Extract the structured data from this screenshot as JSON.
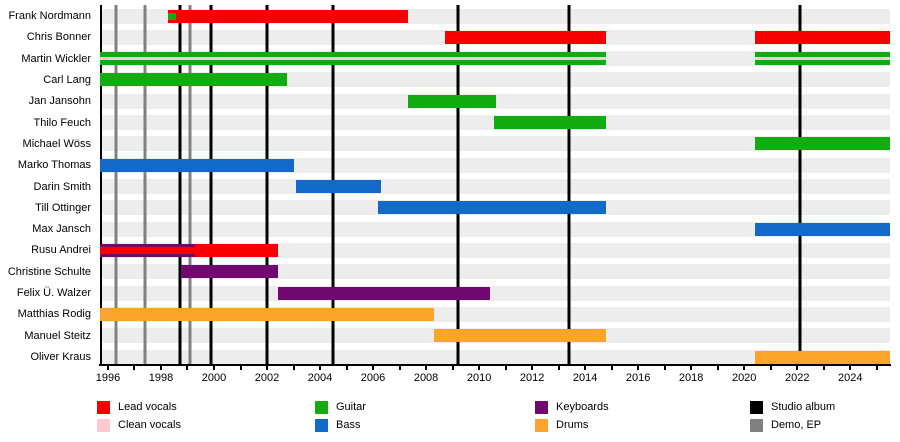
{
  "chart_data": {
    "type": "bar",
    "variant": "band-member-timeline",
    "title": "",
    "grid": false,
    "x_axis": {
      "min": 1995.7,
      "max": 2025.5,
      "tick_years": [
        1996,
        1998,
        2000,
        2002,
        2004,
        2006,
        2008,
        2010,
        2012,
        2014,
        2016,
        2018,
        2020,
        2022,
        2024
      ]
    },
    "role_colors": {
      "lead_vocals": "#F80000",
      "clean_vocals": "#FFC9CF",
      "guitar": "#12AC12",
      "bass": "#1269C8",
      "keyboards": "#700870",
      "drums": "#FAA42C"
    },
    "event_colors": {
      "studio_album": "#000000",
      "demo_ep": "#808080"
    },
    "row_band_color": "#EDEDED",
    "members": [
      {
        "name": "Frank Nordmann",
        "bars": [
          {
            "role": "lead_vocals",
            "start": 1998.25,
            "end": 2007.3,
            "stripe": {
              "role": "guitar",
              "start": 1998.25,
              "end": 1998.55,
              "size": "thick"
            }
          }
        ]
      },
      {
        "name": "Chris Bonner",
        "bars": [
          {
            "role": "lead_vocals",
            "start": 2008.7,
            "end": 2014.8
          },
          {
            "role": "lead_vocals",
            "start": 2020.4,
            "end": 2025.5
          }
        ]
      },
      {
        "name": "Martin Wickler",
        "bars": [
          {
            "role": "guitar",
            "start": 1995.7,
            "end": 2014.8,
            "stripe": {
              "role": "clean_vocals",
              "start": 1995.7,
              "end": 2014.8,
              "size": "thin"
            }
          },
          {
            "role": "guitar",
            "start": 2020.4,
            "end": 2025.5,
            "stripe": {
              "role": "clean_vocals",
              "start": 2020.4,
              "end": 2025.5,
              "size": "thin"
            }
          }
        ]
      },
      {
        "name": "Carl Lang",
        "bars": [
          {
            "role": "guitar",
            "start": 1995.7,
            "end": 2002.75
          }
        ]
      },
      {
        "name": "Jan Jansohn",
        "bars": [
          {
            "role": "guitar",
            "start": 2007.3,
            "end": 2010.65
          }
        ]
      },
      {
        "name": "Thilo Feuch",
        "bars": [
          {
            "role": "guitar",
            "start": 2010.55,
            "end": 2014.8
          }
        ]
      },
      {
        "name": "Michael Wöss",
        "bars": [
          {
            "role": "guitar",
            "start": 2020.4,
            "end": 2025.5
          }
        ]
      },
      {
        "name": "Marko Thomas",
        "bars": [
          {
            "role": "bass",
            "start": 1995.7,
            "end": 2003.0
          }
        ]
      },
      {
        "name": "Darin Smith",
        "bars": [
          {
            "role": "bass",
            "start": 2003.1,
            "end": 2006.3
          }
        ]
      },
      {
        "name": "Till Ottinger",
        "bars": [
          {
            "role": "bass",
            "start": 2006.2,
            "end": 2014.8
          }
        ]
      },
      {
        "name": "Max Jansch",
        "bars": [
          {
            "role": "bass",
            "start": 2020.4,
            "end": 2025.5
          }
        ]
      },
      {
        "name": "Rusu Andrei",
        "bars": [
          {
            "role": "keyboards",
            "start": 1995.7,
            "end": 1999.3,
            "stripe": {
              "role": "lead_vocals",
              "start": 1995.7,
              "end": 1999.3,
              "size": "thick"
            }
          },
          {
            "role": "lead_vocals",
            "start": 1999.3,
            "end": 2002.4
          }
        ]
      },
      {
        "name": "Christine Schulte",
        "bars": [
          {
            "role": "keyboards",
            "start": 1998.75,
            "end": 2002.4
          }
        ]
      },
      {
        "name": "Felix Ü. Walzer",
        "bars": [
          {
            "role": "keyboards",
            "start": 2002.4,
            "end": 2010.4
          }
        ]
      },
      {
        "name": "Matthias Rodig",
        "bars": [
          {
            "role": "drums",
            "start": 1995.7,
            "end": 2008.3
          }
        ]
      },
      {
        "name": "Manuel Steitz",
        "bars": [
          {
            "role": "drums",
            "start": 2008.3,
            "end": 2014.8
          }
        ]
      },
      {
        "name": "Oliver Kraus",
        "bars": [
          {
            "role": "drums",
            "start": 2020.4,
            "end": 2025.5
          }
        ]
      }
    ],
    "events": {
      "studio_albums": [
        1998.7,
        1999.9,
        2002.0,
        2004.5,
        2009.2,
        2013.4,
        2022.1
      ],
      "demo_ep": [
        1996.3,
        1997.4,
        1999.1
      ]
    },
    "legend": {
      "items": [
        {
          "label": "Lead vocals",
          "color": "#F80000",
          "col": 0,
          "row": 0
        },
        {
          "label": "Clean vocals",
          "color": "#FFC9CF",
          "col": 0,
          "row": 1
        },
        {
          "label": "Guitar",
          "color": "#12AC12",
          "col": 1,
          "row": 0
        },
        {
          "label": "Bass",
          "color": "#1269C8",
          "col": 1,
          "row": 1
        },
        {
          "label": "Keyboards",
          "color": "#700870",
          "col": 2,
          "row": 0
        },
        {
          "label": "Drums",
          "color": "#FAA42C",
          "col": 2,
          "row": 1
        },
        {
          "label": "Studio album",
          "color": "#000000",
          "col": 3,
          "row": 0
        },
        {
          "label": "Demo, EP",
          "color": "#808080",
          "col": 3,
          "row": 1
        }
      ]
    }
  }
}
